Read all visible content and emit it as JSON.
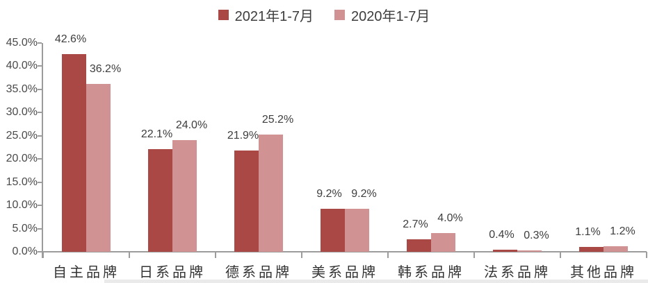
{
  "chart_data": {
    "type": "bar",
    "title": "",
    "categories": [
      "自主品牌",
      "日系品牌",
      "德系品牌",
      "美系品牌",
      "韩系品牌",
      "法系品牌",
      "其他品牌"
    ],
    "series": [
      {
        "name": "2021年1-7月",
        "color": "#A94845",
        "values": [
          42.6,
          22.1,
          21.9,
          9.2,
          2.7,
          0.4,
          1.1
        ]
      },
      {
        "name": "2020年1-7月",
        "color": "#D19294",
        "values": [
          36.2,
          24.0,
          25.2,
          9.2,
          4.0,
          0.3,
          1.2
        ]
      }
    ],
    "data_labels": {
      "series1": [
        "42.6%",
        "22.1%",
        "21.9%",
        "9.2%",
        "2.7%",
        "0.4%",
        "1.1%"
      ],
      "series2": [
        "36.2%",
        "24.0%",
        "25.2%",
        "9.2%",
        "4.0%",
        "0.3%",
        "1.2%"
      ]
    },
    "ylim": [
      0,
      45
    ],
    "ytick_step": 5,
    "ytick_labels": [
      "0.0%",
      "5.0%",
      "10.0%",
      "15.0%",
      "20.0%",
      "25.0%",
      "30.0%",
      "35.0%",
      "40.0%",
      "45.0%"
    ],
    "value_suffix": "%",
    "grid": false,
    "legend_position": "top"
  },
  "style": {
    "axis_color": "#9c9c9c",
    "text_color": "#3d3d3d"
  }
}
